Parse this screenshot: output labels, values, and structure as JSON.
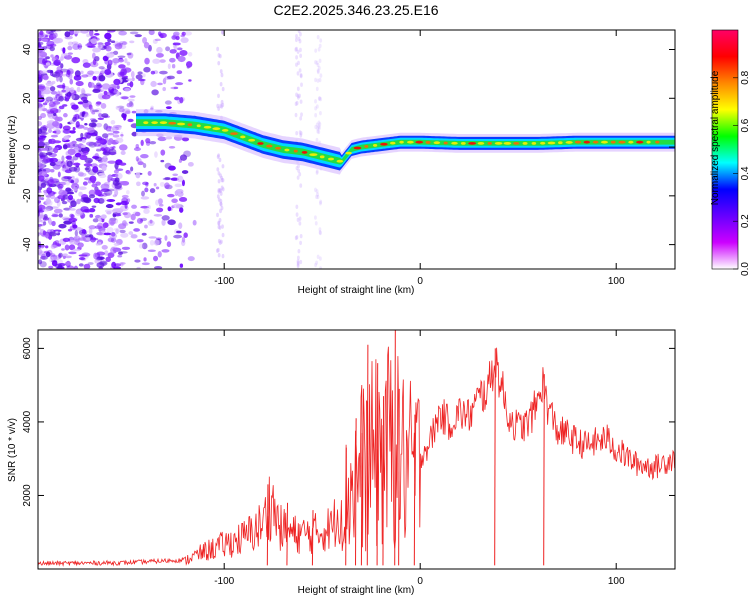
{
  "title": "C2E2.2025.346.23.25.E16",
  "chart_data": [
    {
      "type": "heatmap",
      "name": "spectrogram",
      "xlabel": "Height of straight line (km)",
      "ylabel": "Frequency (Hz)",
      "xlim": [
        -195,
        130
      ],
      "ylim": [
        -50,
        48
      ],
      "xticks": [
        -100,
        0,
        100
      ],
      "xtick_labels": [
        "-100",
        "0",
        "100"
      ],
      "yticks": [
        -40,
        -20,
        0,
        20,
        40
      ],
      "ytick_labels": [
        "-40",
        "-20",
        "0",
        "20",
        "40"
      ],
      "ridge": {
        "x": [
          -145,
          -130,
          -115,
          -100,
          -90,
          -80,
          -70,
          -60,
          -50,
          -40,
          -35,
          -30,
          -20,
          -10,
          0,
          20,
          40,
          60,
          80,
          100,
          130
        ],
        "y": [
          10,
          10,
          9,
          7,
          4,
          1,
          -1,
          -2,
          -4,
          -6,
          -1,
          0,
          1,
          2,
          2,
          1.5,
          1.5,
          1.5,
          2,
          2,
          2
        ]
      },
      "colorbar": {
        "label": "Normalized spectral amplitude",
        "range": [
          0,
          1
        ],
        "ticks": [
          0.0,
          0.2,
          0.4,
          0.6,
          0.8
        ],
        "tick_labels": [
          "0.0",
          "0.2",
          "0.4",
          "0.6",
          "0.8"
        ],
        "colors": [
          "#ffffff",
          "#cc00ff",
          "#6600ff",
          "#0000ff",
          "#00ffff",
          "#00ff00",
          "#ffff00",
          "#ff8800",
          "#ff0000",
          "#ff0066"
        ]
      }
    },
    {
      "type": "line",
      "name": "snr",
      "xlabel": "Height of straight line (km)",
      "ylabel": "SNR (10 * v/v)",
      "xlim": [
        -195,
        130
      ],
      "ylim": [
        0,
        6500
      ],
      "xticks": [
        -100,
        0,
        100
      ],
      "xtick_labels": [
        "-100",
        "0",
        "100"
      ],
      "yticks": [
        2000,
        4000,
        6000
      ],
      "ytick_labels": [
        "2000",
        "4000",
        "6000"
      ],
      "color": "#ee2222",
      "envelope": {
        "x": [
          -195,
          -150,
          -120,
          -110,
          -100,
          -90,
          -80,
          -76,
          -72,
          -65,
          -55,
          -45,
          -40,
          -35,
          -30,
          -25,
          -20,
          -15,
          -10,
          -5,
          0,
          5,
          10,
          15,
          20,
          25,
          30,
          35,
          38,
          40,
          45,
          50,
          55,
          60,
          62,
          65,
          70,
          75,
          80,
          85,
          90,
          95,
          100,
          110,
          120,
          130
        ],
        "y": [
          150,
          170,
          250,
          500,
          700,
          900,
          1300,
          2000,
          1200,
          1000,
          1000,
          1200,
          1800,
          2500,
          3000,
          3300,
          3400,
          3700,
          3300,
          3000,
          3100,
          3500,
          4300,
          4000,
          4300,
          4200,
          4700,
          5000,
          5800,
          5400,
          4200,
          3900,
          4000,
          4600,
          5200,
          4500,
          3800,
          3700,
          3500,
          3400,
          3500,
          3600,
          3300,
          2900,
          2800,
          3100
        ]
      },
      "spikes": [
        {
          "x": -78,
          "y": 2300
        },
        {
          "x": -68,
          "y": 1800
        },
        {
          "x": -55,
          "y": 1600
        },
        {
          "x": -38,
          "y": 3300
        },
        {
          "x": -33,
          "y": 4100
        },
        {
          "x": -30,
          "y": 3700
        },
        {
          "x": -27,
          "y": 6100
        },
        {
          "x": -22,
          "y": 5600
        },
        {
          "x": -19,
          "y": 4700
        },
        {
          "x": -13,
          "y": 6600
        },
        {
          "x": -11,
          "y": 4900
        },
        {
          "x": -3,
          "y": 4200
        },
        {
          "x": 38,
          "y": 6000
        },
        {
          "x": 63,
          "y": 5300
        }
      ]
    }
  ]
}
